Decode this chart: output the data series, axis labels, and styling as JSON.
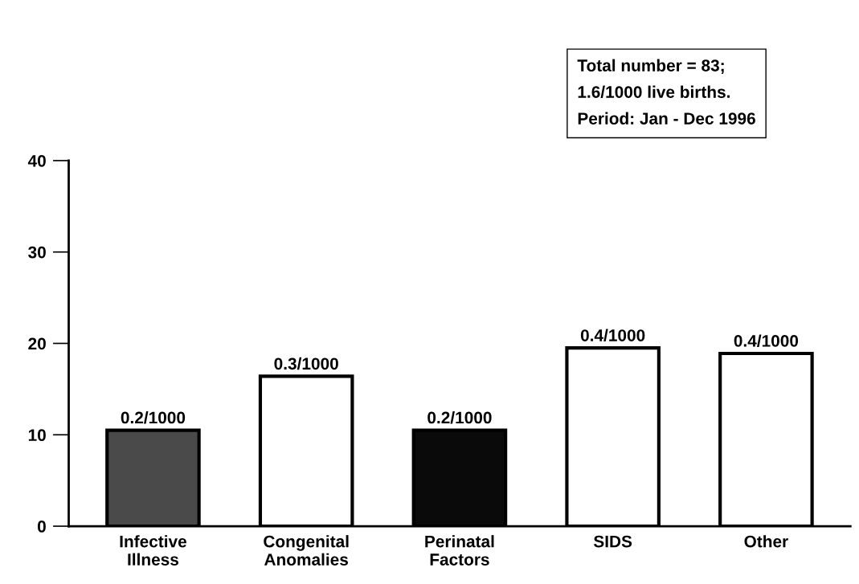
{
  "chart_data": {
    "type": "bar",
    "categories": [
      "Infective\nIllness",
      "Congenital\nAnomalies",
      "Perinatal\nFactors",
      "SIDS",
      "Other"
    ],
    "values": [
      10.5,
      16.4,
      10.5,
      19.5,
      18.9
    ],
    "colors": [
      "#4a4a4a",
      "#ffffff",
      "#0a0a0a",
      "#ffffff",
      "#ffffff"
    ],
    "value_labels": [
      "0.2/1000",
      "0.3/1000",
      "0.2/1000",
      "0.4/1000",
      "0.4/1000"
    ],
    "ylim": [
      0,
      40
    ],
    "yticks": [
      0,
      10,
      20,
      30,
      40
    ],
    "annotations": [
      "Total number = 83;\n1.6/1000 live births.\nPeriod: Jan - Dec 1996"
    ],
    "grid": false,
    "legend": false
  }
}
